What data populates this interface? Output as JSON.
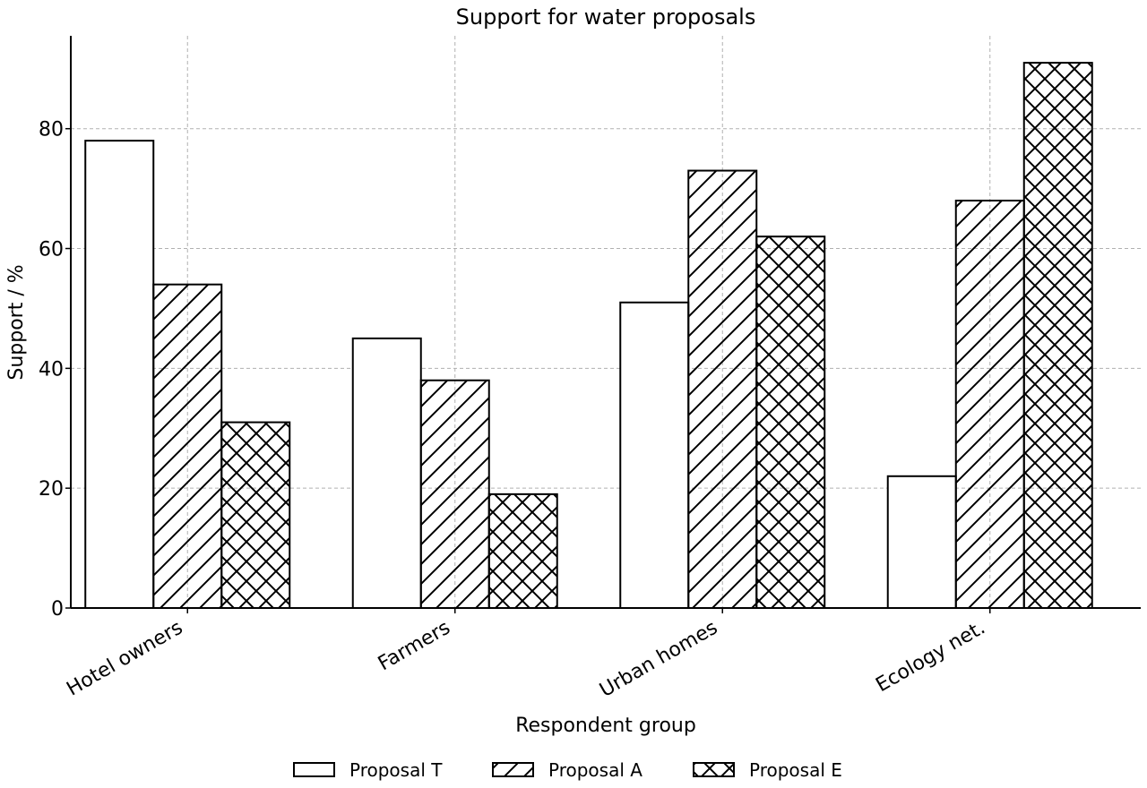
{
  "chart_data": {
    "type": "bar",
    "title": "Support for water proposals",
    "xlabel": "Respondent group",
    "ylabel": "Support / %",
    "categories": [
      "Hotel owners",
      "Farmers",
      "Urban homes",
      "Ecology net."
    ],
    "series": [
      {
        "name": "Proposal T",
        "pattern": "none",
        "values": [
          78,
          45,
          51,
          22
        ]
      },
      {
        "name": "Proposal A",
        "pattern": "diagonal",
        "values": [
          54,
          38,
          73,
          68
        ]
      },
      {
        "name": "Proposal E",
        "pattern": "crosshatch",
        "values": [
          31,
          19,
          62,
          91
        ]
      }
    ],
    "ylim": [
      0,
      95.5
    ],
    "yticks": [
      0,
      20,
      40,
      60,
      80
    ],
    "grid": true,
    "legend_position": "bottom-center",
    "colors": {
      "bar_fill": "#ffffff",
      "bar_edge": "#000000",
      "grid": "#b0b0b0",
      "axis": "#000000"
    }
  }
}
